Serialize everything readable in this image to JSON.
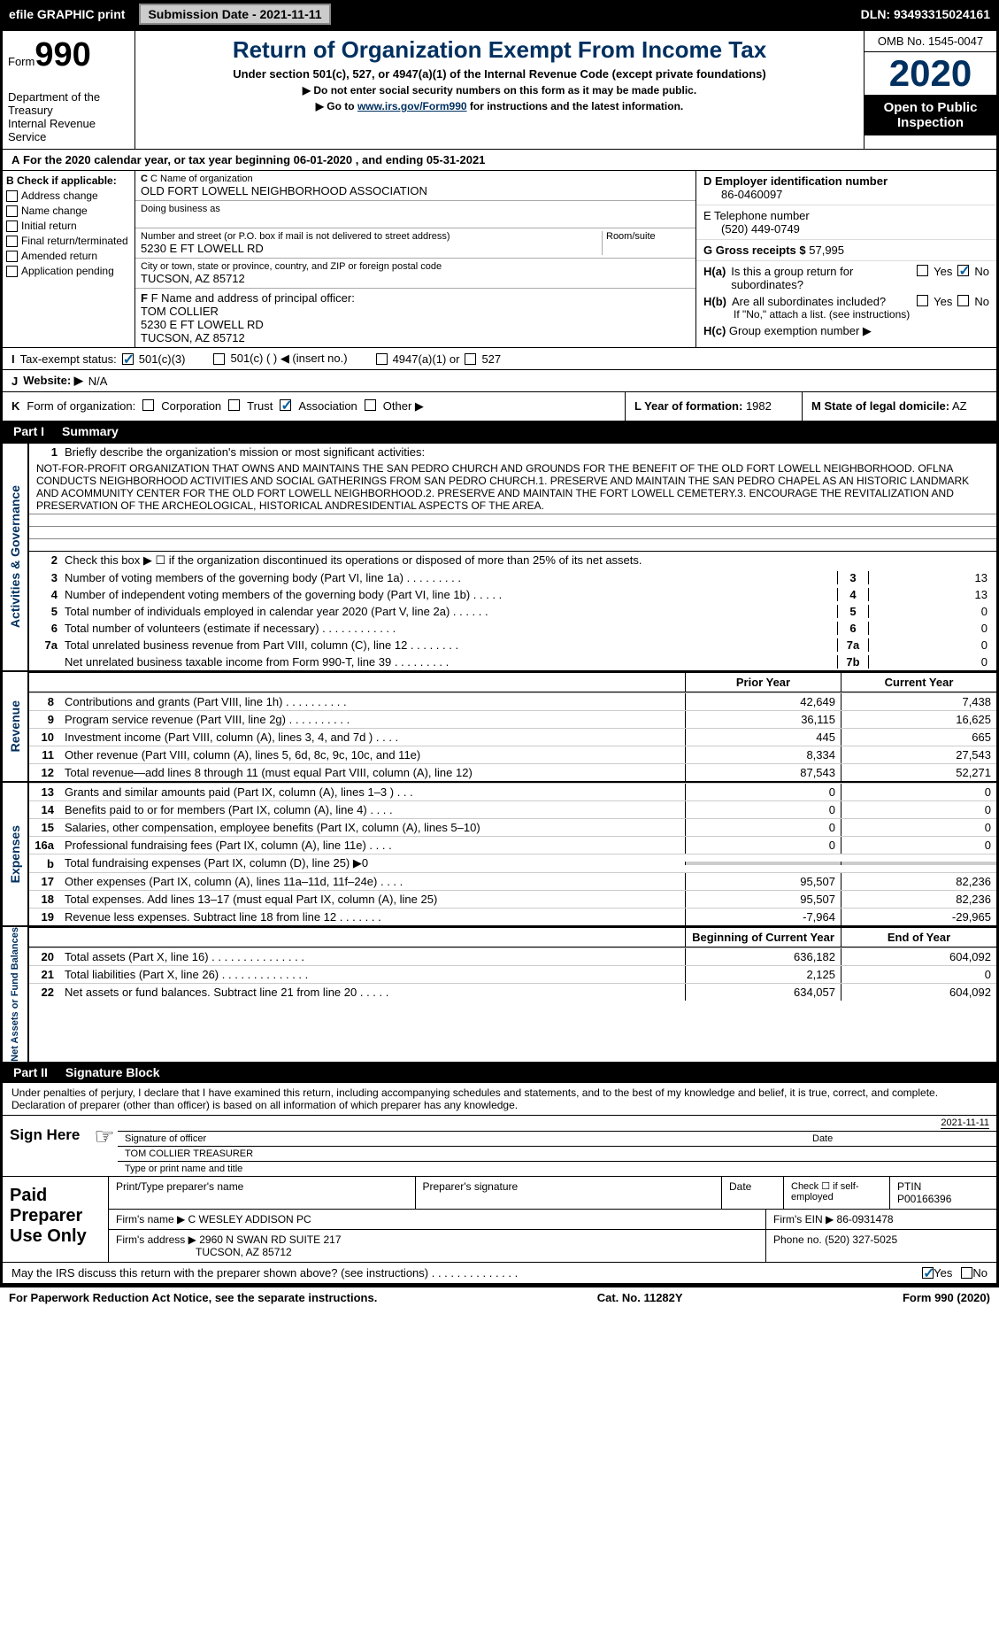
{
  "topbar": {
    "efile_label": "efile GRAPHIC print",
    "submission_date": "Submission Date - 2021-11-11",
    "dln": "DLN: 93493315024161"
  },
  "header": {
    "form_label": "Form",
    "form_number": "990",
    "dept": "Department of the Treasury",
    "irs": "Internal Revenue Service",
    "title": "Return of Organization Exempt From Income Tax",
    "subtitle": "Under section 501(c), 527, or 4947(a)(1) of the Internal Revenue Code (except private foundations)",
    "instr1": "▶ Do not enter social security numbers on this form as it may be made public.",
    "instr2_prefix": "▶ Go to ",
    "instr2_link": "www.irs.gov/Form990",
    "instr2_suffix": " for instructions and the latest information.",
    "omb": "OMB No. 1545-0047",
    "year": "2020",
    "open_public": "Open to Public Inspection"
  },
  "row_a": {
    "label": "A",
    "text": "For the 2020 calendar year, or tax year beginning 06-01-2020    , and ending 05-31-2021"
  },
  "col_b": {
    "label": "B Check if applicable:",
    "items": [
      "Address change",
      "Name change",
      "Initial return",
      "Final return/terminated",
      "Amended return",
      "Application pending"
    ]
  },
  "col_c": {
    "name_label": "C Name of organization",
    "name": "OLD FORT LOWELL NEIGHBORHOOD ASSOCIATION",
    "dba_label": "Doing business as",
    "dba": "",
    "street_label": "Number and street (or P.O. box if mail is not delivered to street address)",
    "street": "5230 E FT LOWELL RD",
    "room_label": "Room/suite",
    "city_label": "City or town, state or province, country, and ZIP or foreign postal code",
    "city": "TUCSON, AZ  85712"
  },
  "col_f": {
    "label": "F Name and address of principal officer:",
    "name": "TOM COLLIER",
    "street": "5230 E FT LOWELL RD",
    "city": "TUCSON, AZ  85712"
  },
  "col_d": {
    "label": "D Employer identification number",
    "value": "86-0460097"
  },
  "col_e": {
    "label": "E Telephone number",
    "value": "(520) 449-0749"
  },
  "col_g": {
    "label": "G Gross receipts $",
    "value": "57,995"
  },
  "col_h": {
    "ha_label": "H(a)",
    "ha_text": "Is this a group return for subordinates?",
    "hb_label": "H(b)",
    "hb_text": "Are all subordinates included?",
    "hb_note": "If \"No,\" attach a list. (see instructions)",
    "hc_label": "H(c)",
    "hc_text": "Group exemption number ▶",
    "yes": "Yes",
    "no": "No",
    "ha_no_checked": true
  },
  "row_i": {
    "label": "I",
    "text": "Tax-exempt status:",
    "opts": [
      "501(c)(3)",
      "501(c) (    ) ◀ (insert no.)",
      "4947(a)(1) or",
      "527"
    ],
    "checked_501c3": true
  },
  "row_j": {
    "label": "J",
    "text": "Website: ▶",
    "value": "N/A"
  },
  "row_k": {
    "label": "K",
    "text": "Form of organization:",
    "opts": [
      "Corporation",
      "Trust",
      "Association",
      "Other ▶"
    ],
    "checked_assoc": true
  },
  "row_l": {
    "year_label": "L Year of formation:",
    "year": "1982",
    "state_label": "M State of legal domicile:",
    "state": "AZ"
  },
  "part1": {
    "label": "Part I",
    "title": "Summary",
    "section_governance": "Activities & Governance",
    "section_revenue": "Revenue",
    "section_expenses": "Expenses",
    "section_netassets": "Net Assets or Fund Balances",
    "line1_label": "Briefly describe the organization's mission or most significant activities:",
    "line1_text": "NOT-FOR-PROFIT ORGANIZATION THAT OWNS AND MAINTAINS THE SAN PEDRO CHURCH AND GROUNDS FOR THE BENEFIT OF THE OLD FORT LOWELL NEIGHBORHOOD. OFLNA CONDUCTS NEIGHBORHOOD ACTIVITIES AND SOCIAL GATHERINGS FROM SAN PEDRO CHURCH.1. PRESERVE AND MAINTAIN THE SAN PEDRO CHAPEL AS AN HISTORIC LANDMARK AND ACOMMUNITY CENTER FOR THE OLD FORT LOWELL NEIGHBORHOOD.2. PRESERVE AND MAINTAIN THE FORT LOWELL CEMETERY.3. ENCOURAGE THE REVITALIZATION AND PRESERVATION OF THE ARCHEOLOGICAL, HISTORICAL ANDRESIDENTIAL ASPECTS OF THE AREA.",
    "line2": "Check this box ▶ ☐ if the organization discontinued its operations or disposed of more than 25% of its net assets.",
    "lines_simple": [
      {
        "n": "3",
        "t": "Number of voting members of the governing body (Part VI, line 1a)   .    .    .    .    .    .    .    .    .",
        "box": "3",
        "v": "13"
      },
      {
        "n": "4",
        "t": "Number of independent voting members of the governing body (Part VI, line 1b)   .    .    .    .    .",
        "box": "4",
        "v": "13"
      },
      {
        "n": "5",
        "t": "Total number of individuals employed in calendar year 2020 (Part V, line 2a)   .    .    .    .    .    .",
        "box": "5",
        "v": "0"
      },
      {
        "n": "6",
        "t": "Total number of volunteers (estimate if necessary)   .    .    .    .    .    .    .    .    .    .    .    .",
        "box": "6",
        "v": "0"
      },
      {
        "n": "7a",
        "t": "Total unrelated business revenue from Part VIII, column (C), line 12   .    .    .    .    .    .    .    .",
        "box": "7a",
        "v": "0"
      },
      {
        "n": "",
        "t": "Net unrelated business taxable income from Form 990-T, line 39   .    .    .    .    .    .    .    .    .",
        "box": "7b",
        "v": "0"
      }
    ],
    "prior_year": "Prior Year",
    "current_year": "Current Year",
    "beg_year": "Beginning of Current Year",
    "end_year": "End of Year",
    "revenue_lines": [
      {
        "n": "b",
        "t": "",
        "p": "",
        "c": "",
        "shaded": true,
        "header": true
      },
      {
        "n": "8",
        "t": "Contributions and grants (Part VIII, line 1h)   .    .    .    .    .    .    .    .    .    .",
        "p": "42,649",
        "c": "7,438"
      },
      {
        "n": "9",
        "t": "Program service revenue (Part VIII, line 2g)    .    .    .    .    .    .    .    .    .    .",
        "p": "36,115",
        "c": "16,625"
      },
      {
        "n": "10",
        "t": "Investment income (Part VIII, column (A), lines 3, 4, and 7d )   .    .    .    .",
        "p": "445",
        "c": "665"
      },
      {
        "n": "11",
        "t": "Other revenue (Part VIII, column (A), lines 5, 6d, 8c, 9c, 10c, and 11e)",
        "p": "8,334",
        "c": "27,543"
      },
      {
        "n": "12",
        "t": "Total revenue—add lines 8 through 11 (must equal Part VIII, column (A), line 12)",
        "p": "87,543",
        "c": "52,271"
      }
    ],
    "expense_lines": [
      {
        "n": "13",
        "t": "Grants and similar amounts paid (Part IX, column (A), lines 1–3 )   .    .    .",
        "p": "0",
        "c": "0"
      },
      {
        "n": "14",
        "t": "Benefits paid to or for members (Part IX, column (A), line 4)   .    .    .    .",
        "p": "0",
        "c": "0"
      },
      {
        "n": "15",
        "t": "Salaries, other compensation, employee benefits (Part IX, column (A), lines 5–10)",
        "p": "0",
        "c": "0"
      },
      {
        "n": "16a",
        "t": "Professional fundraising fees (Part IX, column (A), line 11e)   .    .    .    .",
        "p": "0",
        "c": "0"
      },
      {
        "n": "b",
        "t": "Total fundraising expenses (Part IX, column (D), line 25) ▶0",
        "p": "",
        "c": "",
        "shaded": true
      },
      {
        "n": "17",
        "t": "Other expenses (Part IX, column (A), lines 11a–11d, 11f–24e)   .    .    .    .",
        "p": "95,507",
        "c": "82,236"
      },
      {
        "n": "18",
        "t": "Total expenses. Add lines 13–17 (must equal Part IX, column (A), line 25)",
        "p": "95,507",
        "c": "82,236"
      },
      {
        "n": "19",
        "t": "Revenue less expenses. Subtract line 18 from line 12    .    .    .    .    .    .    .",
        "p": "-7,964",
        "c": "-29,965"
      }
    ],
    "netasset_lines": [
      {
        "n": "20",
        "t": "Total assets (Part X, line 16)   .    .    .    .    .    .    .    .    .    .    .    .    .    .    .",
        "p": "636,182",
        "c": "604,092"
      },
      {
        "n": "21",
        "t": "Total liabilities (Part X, line 26)    .    .    .    .    .    .    .    .    .    .    .    .    .    .",
        "p": "2,125",
        "c": "0"
      },
      {
        "n": "22",
        "t": "Net assets or fund balances. Subtract line 21 from line 20   .    .    .    .    .",
        "p": "634,057",
        "c": "604,092"
      }
    ]
  },
  "part2": {
    "label": "Part II",
    "title": "Signature Block",
    "perjury": "Under penalties of perjury, I declare that I have examined this return, including accompanying schedules and statements, and to the best of my knowledge and belief, it is true, correct, and complete. Declaration of preparer (other than officer) is based on all information of which preparer has any knowledge.",
    "sign_here": "Sign Here",
    "sig_officer_label": "Signature of officer",
    "sig_date": "2021-11-11",
    "date_label": "Date",
    "name_title": "TOM COLLIER  TREASURER",
    "name_title_label": "Type or print name and title"
  },
  "paid": {
    "label": "Paid Preparer Use Only",
    "print_name_label": "Print/Type preparer's name",
    "sig_label": "Preparer's signature",
    "date_label": "Date",
    "check_self": "Check ☐ if self-employed",
    "ptin_label": "PTIN",
    "ptin": "P00166396",
    "firm_name_label": "Firm's name   ▶",
    "firm_name": "C WESLEY ADDISON PC",
    "firm_ein_label": "Firm's EIN ▶",
    "firm_ein": "86-0931478",
    "firm_addr_label": "Firm's address ▶",
    "firm_addr1": "2960 N SWAN RD SUITE 217",
    "firm_addr2": "TUCSON, AZ  85712",
    "phone_label": "Phone no.",
    "phone": "(520) 327-5025"
  },
  "discuss": {
    "text": "May the IRS discuss this return with the preparer shown above? (see instructions)   .    .    .    .    .    .    .    .    .    .    .    .    .    .",
    "yes": "Yes",
    "no": "No",
    "yes_checked": true
  },
  "footer": {
    "left": "For Paperwork Reduction Act Notice, see the separate instructions.",
    "center": "Cat. No. 11282Y",
    "right": "Form 990 (2020)"
  }
}
